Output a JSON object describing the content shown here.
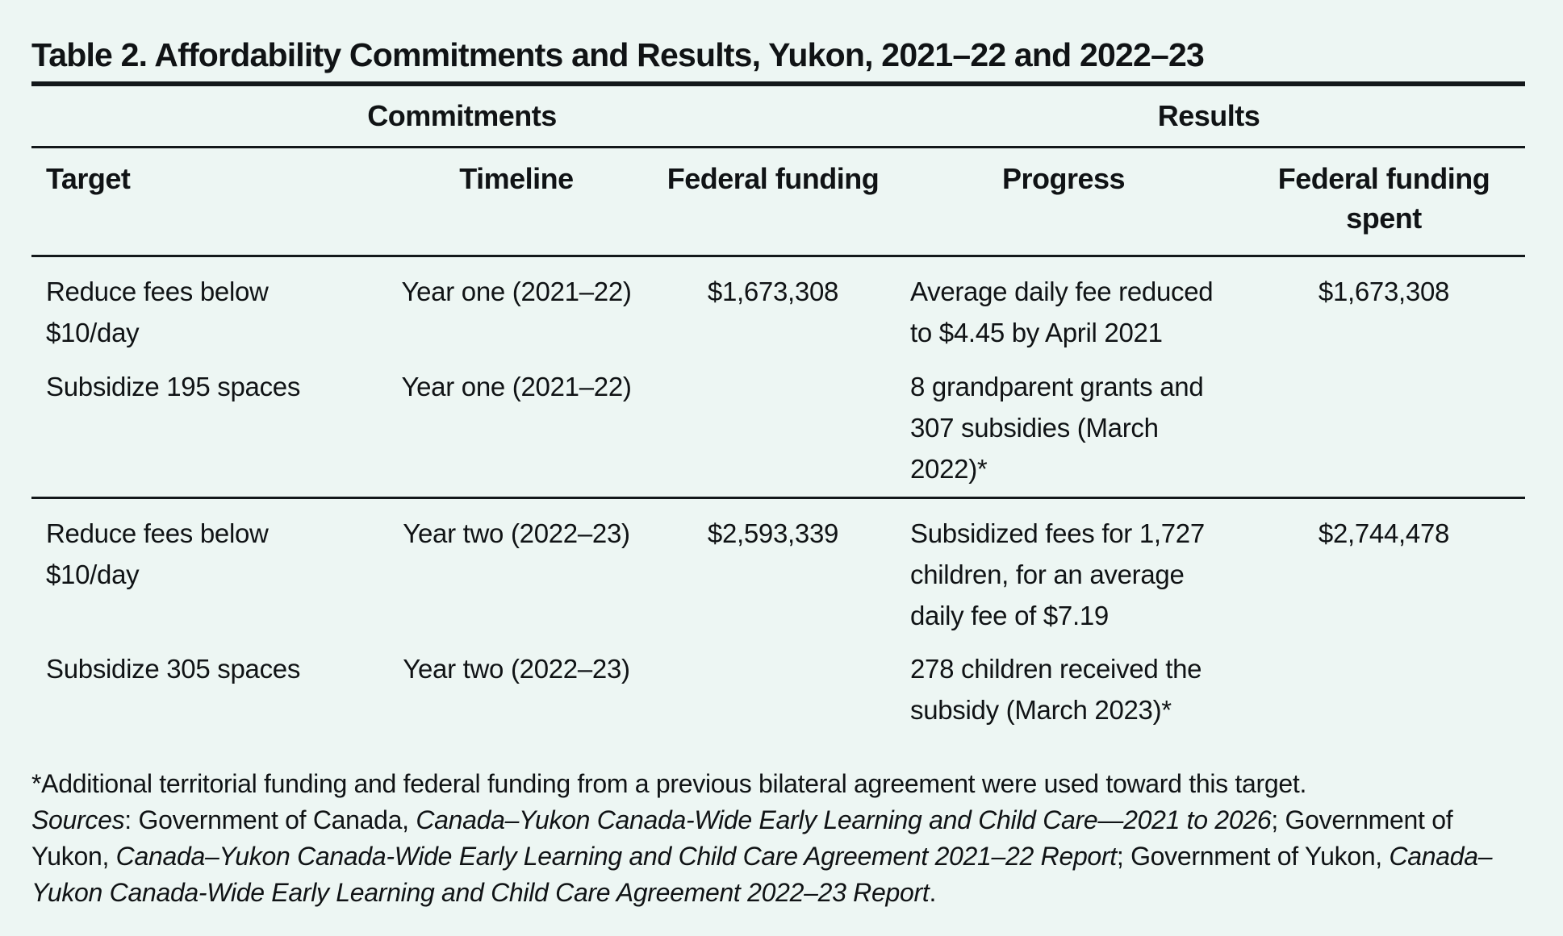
{
  "table": {
    "title": "Table 2. Affordability Commitments and Results, Yukon, 2021–22 and 2022–23",
    "group_headers": {
      "commitments": "Commitments",
      "results": "Results"
    },
    "columns": [
      "Target",
      "Timeline",
      "Federal funding",
      "Progress",
      "Federal funding spent"
    ],
    "rows": [
      {
        "target": "Reduce fees below $10/day",
        "timeline": "Year one (2021–22)",
        "federal_funding": "$1,673,308",
        "progress": "Average daily fee reduced to $4.45 by April 2021",
        "federal_funding_spent": "$1,673,308"
      },
      {
        "target": "Subsidize 195 spaces",
        "timeline": "Year one (2021–22)",
        "federal_funding": "",
        "progress": "8 grandparent grants and 307 subsidies (March 2022)*",
        "federal_funding_spent": ""
      },
      {
        "target": "Reduce fees below $10/day",
        "timeline": "Year two (2022–23)",
        "federal_funding": "$2,593,339",
        "progress": "Subsidized fees for 1,727 children, for an average daily fee of $7.19",
        "federal_funding_spent": "$2,744,478"
      },
      {
        "target": "Subsidize 305 spaces",
        "timeline": "Year two (2022–23)",
        "federal_funding": "",
        "progress": "278 children received the subsidy (March 2023)*",
        "federal_funding_spent": ""
      }
    ],
    "footnote": "*Additional territorial funding and federal funding from a previous bilateral agreement were used toward this target.",
    "sources_segments": [
      {
        "text": "Sources",
        "italic": true
      },
      {
        "text": ": Government of Canada, ",
        "italic": false
      },
      {
        "text": "Canada–Yukon Canada-Wide Early Learning and Child Care—2021 to 2026",
        "italic": true
      },
      {
        "text": "; Government of Yukon, ",
        "italic": false
      },
      {
        "text": "Canada–Yukon Canada-Wide Early Learning and Child Care Agreement 2021–22 Report",
        "italic": true
      },
      {
        "text": "; Government of Yukon, ",
        "italic": false
      },
      {
        "text": "Canada–Yukon Canada-Wide Early Learning and Child Care Agreement 2022–23 Report",
        "italic": true
      },
      {
        "text": ".",
        "italic": false
      }
    ],
    "colors": {
      "background": "#edf6f3",
      "text": "#101315",
      "rule": "#13181a"
    }
  }
}
